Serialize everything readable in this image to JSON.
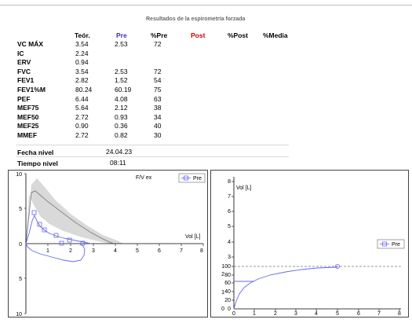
{
  "report": {
    "title": "Resultados de la espirometría forzada"
  },
  "table": {
    "headers": {
      "teor": "Teór.",
      "pre": "Pre",
      "pct_pre": "%Pre",
      "post": "Post",
      "pct_post": "%Post",
      "pct_media": "%Media"
    },
    "rows": [
      {
        "label": "VC MÁX",
        "teor": "3.54",
        "pre": "2.53",
        "pct_pre": "72"
      },
      {
        "label": "IC",
        "teor": "2.24",
        "pre": "",
        "pct_pre": ""
      },
      {
        "label": "ERV",
        "teor": "0.94",
        "pre": "",
        "pct_pre": ""
      },
      {
        "label": "FVC",
        "teor": "3.54",
        "pre": "2.53",
        "pct_pre": "72"
      },
      {
        "label": "FEV1",
        "teor": "2.82",
        "pre": "1.52",
        "pct_pre": "54"
      },
      {
        "label": "FEV1%M",
        "teor": "80.24",
        "pre": "60.19",
        "pct_pre": "75"
      },
      {
        "label": "PEF",
        "teor": "6.44",
        "pre": "4.08",
        "pct_pre": "63"
      },
      {
        "label": "MEF75",
        "teor": "5.64",
        "pre": "2.12",
        "pct_pre": "38"
      },
      {
        "label": "MEF50",
        "teor": "2.72",
        "pre": "0.93",
        "pct_pre": "34"
      },
      {
        "label": "MEF25",
        "teor": "0.90",
        "pre": "0.36",
        "pct_pre": "40"
      },
      {
        "label": "MMEF",
        "teor": "2.72",
        "pre": "0.82",
        "pct_pre": "30"
      }
    ]
  },
  "session": {
    "fecha_label": "Fecha nivel",
    "fecha_value": "24.04.23",
    "tiempo_label": "Tiempo nivel",
    "tiempo_value": "08:11"
  },
  "flow_volume": {
    "title": "F/V ex",
    "legend": "Pre",
    "xlabel": "Vol [L]",
    "y_ticks": [
      "10",
      "5",
      "0",
      "5",
      "10"
    ],
    "x_ticks": [
      "1",
      "2",
      "3",
      "4",
      "5",
      "6",
      "7",
      "8"
    ],
    "colors": {
      "pre": "#6666ee",
      "predicted_band": "#d9d9d9",
      "predicted_line": "#888888"
    }
  },
  "volume_time": {
    "ylabel": "Vol [L]",
    "legend": "Pre",
    "y_ticks_upper": [
      "8",
      "7",
      "6",
      "5",
      "4",
      "3"
    ],
    "y_ticks_lower": [
      "2",
      "1",
      "0"
    ],
    "pct_ticks": [
      "100",
      "80",
      "60",
      "40",
      "20",
      "0"
    ],
    "x_ticks": [
      "0",
      "1",
      "2",
      "3",
      "4",
      "5",
      "6",
      "7",
      "8"
    ],
    "colors": {
      "pre": "#6666ee"
    }
  }
}
